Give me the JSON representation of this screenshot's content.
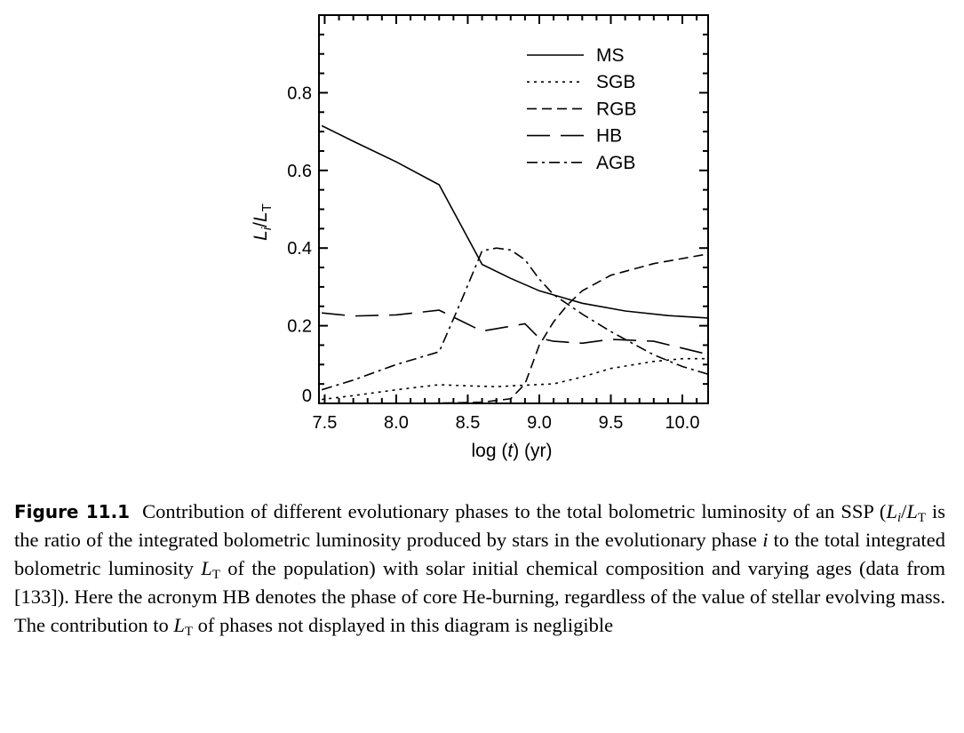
{
  "chart_data": {
    "type": "line",
    "xlabel": "log (t) (yr)",
    "ylabel": "Li/LT",
    "xlim": [
      7.46,
      10.18
    ],
    "ylim": [
      0,
      1.0
    ],
    "x_ticks": [
      "7.5",
      "8.0",
      "8.5",
      "9.0",
      "9.5",
      "10.0"
    ],
    "x_tick_values": [
      7.5,
      8.0,
      8.5,
      9.0,
      9.5,
      10.0
    ],
    "y_ticks": [
      "0",
      "0.2",
      "0.4",
      "0.6",
      "0.8"
    ],
    "y_tick_values": [
      0,
      0.2,
      0.4,
      0.6,
      0.8
    ],
    "legend_position": "top-right",
    "series": [
      {
        "name": "MS",
        "dash": "solid",
        "x": [
          7.48,
          7.7,
          8.0,
          8.3,
          8.6,
          8.8,
          9.0,
          9.3,
          9.6,
          9.9,
          10.18
        ],
        "y": [
          0.715,
          0.675,
          0.622,
          0.563,
          0.358,
          0.322,
          0.29,
          0.258,
          0.238,
          0.226,
          0.22
        ]
      },
      {
        "name": "SGB",
        "dash": "dotted",
        "x": [
          7.48,
          7.7,
          8.0,
          8.3,
          8.5,
          8.7,
          8.9,
          9.1,
          9.3,
          9.5,
          9.8,
          10.0,
          10.18
        ],
        "y": [
          0.01,
          0.02,
          0.035,
          0.048,
          0.045,
          0.043,
          0.047,
          0.05,
          0.068,
          0.09,
          0.108,
          0.115,
          0.115
        ]
      },
      {
        "name": "RGB",
        "dash": "short-dash",
        "x": [
          7.48,
          7.8,
          8.2,
          8.6,
          8.8,
          8.9,
          9.0,
          9.1,
          9.2,
          9.3,
          9.5,
          9.8,
          10.18
        ],
        "y": [
          0.0,
          0.0,
          0.0,
          0.003,
          0.012,
          0.05,
          0.15,
          0.21,
          0.255,
          0.29,
          0.33,
          0.36,
          0.385
        ]
      },
      {
        "name": "HB",
        "dash": "long-dash",
        "x": [
          7.48,
          7.7,
          8.0,
          8.3,
          8.6,
          8.9,
          9.0,
          9.1,
          9.3,
          9.5,
          9.8,
          10.18
        ],
        "y": [
          0.233,
          0.225,
          0.228,
          0.24,
          0.186,
          0.205,
          0.168,
          0.16,
          0.155,
          0.165,
          0.16,
          0.126
        ]
      },
      {
        "name": "AGB",
        "dash": "dash-dot",
        "x": [
          7.48,
          7.7,
          8.0,
          8.3,
          8.45,
          8.6,
          8.7,
          8.8,
          8.9,
          9.0,
          9.1,
          9.3,
          9.5,
          9.8,
          10.0,
          10.18
        ],
        "y": [
          0.035,
          0.06,
          0.1,
          0.133,
          0.26,
          0.393,
          0.4,
          0.395,
          0.37,
          0.32,
          0.28,
          0.23,
          0.185,
          0.125,
          0.095,
          0.075
        ]
      }
    ]
  },
  "caption": {
    "label": "Figure 11.1",
    "text_1": "Contribution of different evolutionary phases to the total bolometric luminosity of an SSP (",
    "li": "L",
    "li_sub": "i",
    "slash": "/",
    "lt": "L",
    "lt_sub": "T",
    "text_2": " is the ratio of the integrated bolometric luminosity produced by stars in the evolutionary phase ",
    "i": "i",
    "text_3": " to the total integrated bolometric luminosity ",
    "lt2": "L",
    "lt2_sub": "T",
    "text_4": " of the population) with solar initial chemical composition and varying ages (data from [133]). Here the acronym HB denotes the phase of core He-burning, regardless of the value of stellar evolving mass. The contribution to ",
    "lt3": "L",
    "lt3_sub": "T",
    "text_5": " of phases not displayed in this diagram is negligible"
  }
}
